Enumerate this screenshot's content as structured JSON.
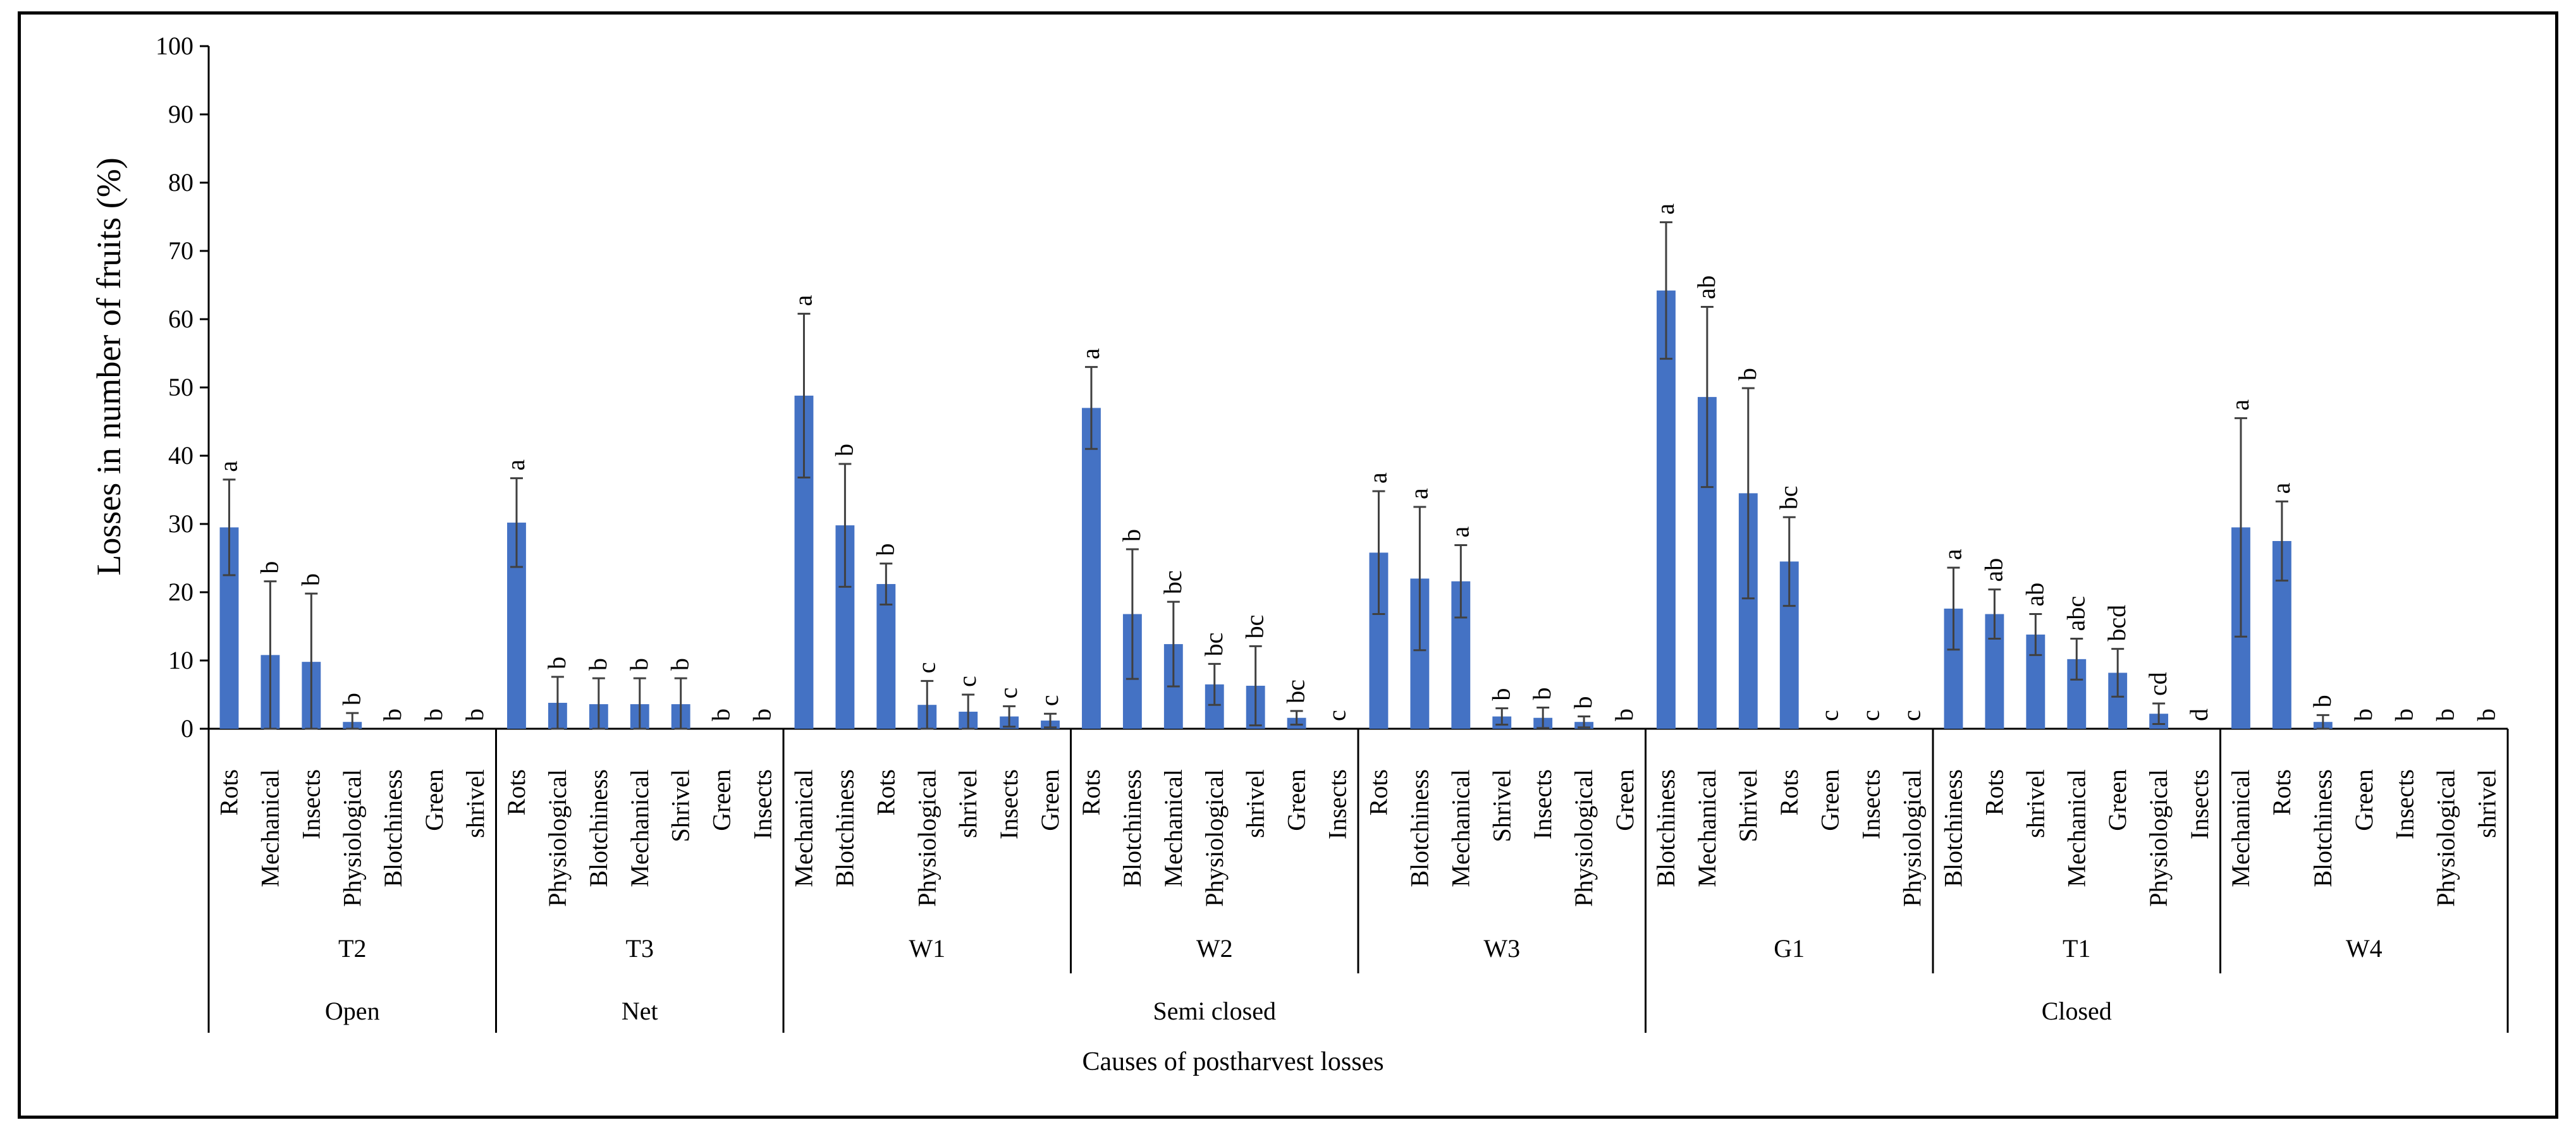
{
  "chart_data": {
    "type": "bar",
    "title": "",
    "ylabel": "Losses in number of fruits  (%)",
    "xlabel": "Causes of postharvest losses",
    "ylim": [
      0,
      100
    ],
    "yticks": [
      0,
      10,
      20,
      30,
      40,
      50,
      60,
      70,
      80,
      90,
      100
    ],
    "bar_color": "#4472C4",
    "error_color": "#404040",
    "groups": [
      {
        "name": "T2",
        "bars": [
          {
            "label": "Rots",
            "value": 29.5,
            "err": 7,
            "letter": "a"
          },
          {
            "label": "Mechanical",
            "value": 10.8,
            "err": 10.8,
            "letter": "b"
          },
          {
            "label": "Insects",
            "value": 9.8,
            "err": 10,
            "letter": "b"
          },
          {
            "label": "Physiological",
            "value": 1,
            "err": 1.3,
            "letter": "b"
          },
          {
            "label": "Blotchiness",
            "value": 0,
            "err": 0,
            "letter": "b"
          },
          {
            "label": "Green",
            "value": 0,
            "err": 0,
            "letter": "b"
          },
          {
            "label": "shrivel",
            "value": 0,
            "err": 0,
            "letter": "b"
          }
        ]
      },
      {
        "name": "T3",
        "bars": [
          {
            "label": "Rots",
            "value": 30.2,
            "err": 6.5,
            "letter": "a"
          },
          {
            "label": "Physiological",
            "value": 3.8,
            "err": 3.8,
            "letter": "b"
          },
          {
            "label": "Blotchiness",
            "value": 3.6,
            "err": 3.8,
            "letter": "b"
          },
          {
            "label": "Mechanical",
            "value": 3.6,
            "err": 3.8,
            "letter": "b"
          },
          {
            "label": "Shrivel",
            "value": 3.6,
            "err": 3.8,
            "letter": "b"
          },
          {
            "label": "Green",
            "value": 0,
            "err": 0,
            "letter": "b"
          },
          {
            "label": "Insects",
            "value": 0,
            "err": 0,
            "letter": "b"
          }
        ]
      },
      {
        "name": "W1",
        "bars": [
          {
            "label": "Mechanical",
            "value": 48.8,
            "err": 12,
            "letter": "a"
          },
          {
            "label": "Blotchiness",
            "value": 29.8,
            "err": 9,
            "letter": "b"
          },
          {
            "label": "Rots",
            "value": 21.2,
            "err": 3,
            "letter": "b"
          },
          {
            "label": "Physiological",
            "value": 3.5,
            "err": 3.5,
            "letter": "c"
          },
          {
            "label": "shrivel",
            "value": 2.5,
            "err": 2.5,
            "letter": "c"
          },
          {
            "label": "Insects",
            "value": 1.8,
            "err": 1.5,
            "letter": "c"
          },
          {
            "label": "Green",
            "value": 1.2,
            "err": 1,
            "letter": "c"
          }
        ]
      },
      {
        "name": "W2",
        "bars": [
          {
            "label": "Rots",
            "value": 47,
            "err": 6,
            "letter": "a"
          },
          {
            "label": "Blotchiness",
            "value": 16.8,
            "err": 9.5,
            "letter": "b"
          },
          {
            "label": "Mechanical",
            "value": 12.4,
            "err": 6.2,
            "letter": "bc"
          },
          {
            "label": "Physiological",
            "value": 6.5,
            "err": 3,
            "letter": "bc"
          },
          {
            "label": "shrivel",
            "value": 6.3,
            "err": 5.8,
            "letter": "bc"
          },
          {
            "label": "Green",
            "value": 1.6,
            "err": 1,
            "letter": "bc"
          },
          {
            "label": "Insects",
            "value": 0,
            "err": 0,
            "letter": "c"
          }
        ]
      },
      {
        "name": "W3",
        "bars": [
          {
            "label": "Rots",
            "value": 25.8,
            "err": 9,
            "letter": "a"
          },
          {
            "label": "Blotchiness",
            "value": 22,
            "err": 10.5,
            "letter": "a"
          },
          {
            "label": "Mechanical",
            "value": 21.6,
            "err": 5.3,
            "letter": "a"
          },
          {
            "label": "Shrivel",
            "value": 1.8,
            "err": 1.2,
            "letter": "b"
          },
          {
            "label": "Insects",
            "value": 1.6,
            "err": 1.5,
            "letter": "b"
          },
          {
            "label": "Physiological",
            "value": 1,
            "err": 0.8,
            "letter": "b"
          },
          {
            "label": "Green",
            "value": 0,
            "err": 0,
            "letter": "b"
          }
        ]
      },
      {
        "name": "G1",
        "bars": [
          {
            "label": "Blotchiness",
            "value": 64.2,
            "err": 10,
            "letter": "a"
          },
          {
            "label": "Mechanical",
            "value": 48.6,
            "err": 13.2,
            "letter": "ab"
          },
          {
            "label": "Shrivel",
            "value": 34.5,
            "err": 15.4,
            "letter": "b"
          },
          {
            "label": "Rots",
            "value": 24.5,
            "err": 6.5,
            "letter": "bc"
          },
          {
            "label": "Green",
            "value": 0,
            "err": 0,
            "letter": "c"
          },
          {
            "label": "Insects",
            "value": 0,
            "err": 0,
            "letter": "c"
          },
          {
            "label": "Physiological",
            "value": 0,
            "err": 0,
            "letter": "c"
          }
        ]
      },
      {
        "name": "T1",
        "bars": [
          {
            "label": "Blotchiness",
            "value": 17.6,
            "err": 6,
            "letter": "a"
          },
          {
            "label": "Rots",
            "value": 16.8,
            "err": 3.6,
            "letter": "ab"
          },
          {
            "label": "shrivel",
            "value": 13.8,
            "err": 3,
            "letter": "ab"
          },
          {
            "label": "Mechanical",
            "value": 10.2,
            "err": 3,
            "letter": "abc"
          },
          {
            "label": "Green",
            "value": 8.2,
            "err": 3.5,
            "letter": "bcd"
          },
          {
            "label": "Physiological",
            "value": 2.2,
            "err": 1.5,
            "letter": "cd"
          },
          {
            "label": "Insects",
            "value": 0,
            "err": 0,
            "letter": "d"
          }
        ]
      },
      {
        "name": "W4",
        "bars": [
          {
            "label": "Mechanical",
            "value": 29.5,
            "err": 16,
            "letter": "a"
          },
          {
            "label": "Rots",
            "value": 27.5,
            "err": 5.8,
            "letter": "a"
          },
          {
            "label": "Blotchiness",
            "value": 1,
            "err": 1,
            "letter": "b"
          },
          {
            "label": "Green",
            "value": 0,
            "err": 0,
            "letter": "b"
          },
          {
            "label": "Insects",
            "value": 0,
            "err": 0,
            "letter": "b"
          },
          {
            "label": "Physiological",
            "value": 0,
            "err": 0,
            "letter": "b"
          },
          {
            "label": "shrivel",
            "value": 0,
            "err": 0,
            "letter": "b"
          }
        ]
      }
    ],
    "categories": [
      {
        "name": "Open",
        "groups": 1
      },
      {
        "name": "Net",
        "groups": 1
      },
      {
        "name": "Semi closed",
        "groups": 3
      },
      {
        "name": "Closed",
        "groups": 3
      }
    ]
  }
}
